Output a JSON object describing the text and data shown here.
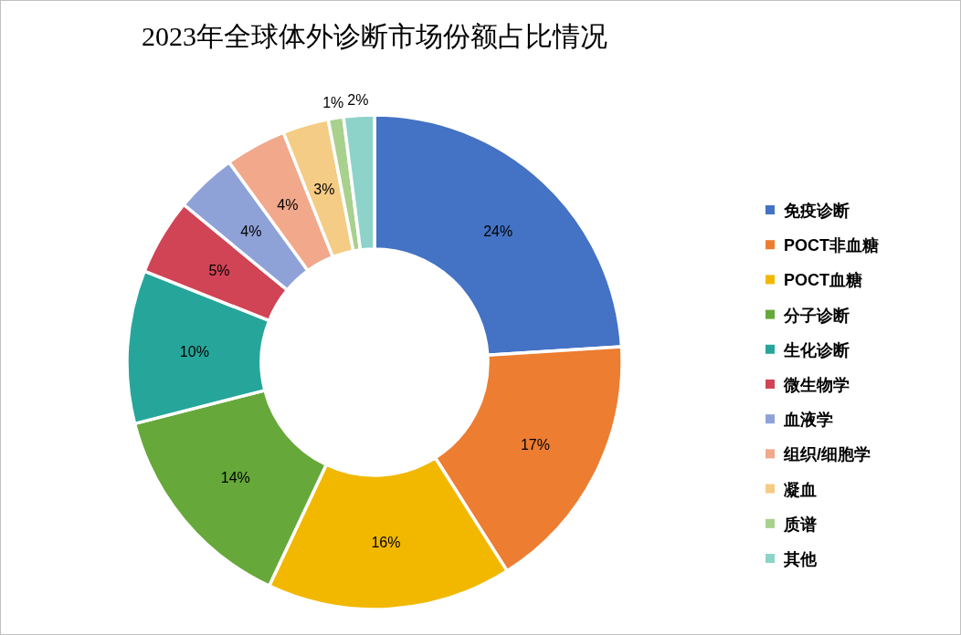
{
  "chart_data": {
    "type": "donut",
    "title": "2023年全球体外诊断市场份额占比情况",
    "categories": [
      "免疫诊断",
      "POCT非血糖",
      "POCT血糖",
      "分子诊断",
      "生化诊断",
      "微生物学",
      "血液学",
      "组织/细胞学",
      "凝血",
      "质谱",
      "其他"
    ],
    "values": [
      24,
      17,
      16,
      14,
      10,
      5,
      4,
      4,
      3,
      1,
      2
    ],
    "colors": [
      "#4472c4",
      "#ed7d31",
      "#f2b800",
      "#66a83a",
      "#26a69a",
      "#d04455",
      "#8fa2d8",
      "#f2a88a",
      "#f5cc85",
      "#a9d18e",
      "#8dd3c9"
    ],
    "value_labels": [
      "24%",
      "17%",
      "16%",
      "14%",
      "10%",
      "5%",
      "4%",
      "4%",
      "3%",
      "1%",
      "2%"
    ],
    "legend": "right"
  }
}
